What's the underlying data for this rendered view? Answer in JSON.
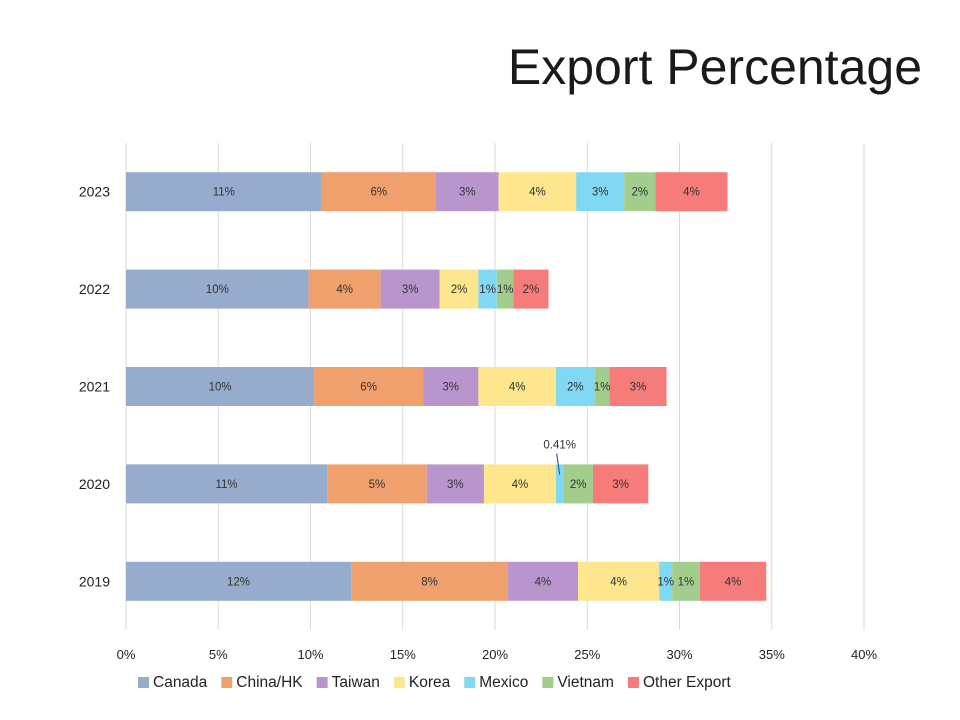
{
  "chart_data": {
    "type": "bar",
    "orientation": "horizontal",
    "stacked": true,
    "title": "Export Percentage",
    "categories": [
      "2023",
      "2022",
      "2021",
      "2020",
      "2019"
    ],
    "xlim": [
      0,
      40
    ],
    "x_ticks": [
      "0%",
      "5%",
      "10%",
      "15%",
      "20%",
      "25%",
      "30%",
      "35%",
      "40%"
    ],
    "grid": "vertical",
    "legend_position": "bottom",
    "series": [
      {
        "name": "Canada",
        "color": "#97abcd",
        "values": [
          10.6,
          9.9,
          10.2,
          10.9,
          12.2
        ],
        "labels": [
          "11%",
          "10%",
          "10%",
          "11%",
          "12%"
        ]
      },
      {
        "name": "China/HK",
        "color": "#f0a06c",
        "values": [
          6.2,
          3.9,
          5.9,
          5.4,
          8.5
        ],
        "labels": [
          "6%",
          "4%",
          "6%",
          "5%",
          "8%"
        ]
      },
      {
        "name": "Taiwan",
        "color": "#b896cd",
        "values": [
          3.4,
          3.2,
          3.0,
          3.1,
          3.8
        ],
        "labels": [
          "3%",
          "3%",
          "3%",
          "3%",
          "4%"
        ]
      },
      {
        "name": "Korea",
        "color": "#fde68e",
        "values": [
          4.2,
          2.1,
          4.2,
          3.9,
          4.4
        ],
        "labels": [
          "4%",
          "2%",
          "4%",
          "4%",
          "4%"
        ]
      },
      {
        "name": "Mexico",
        "color": "#81d8f2",
        "values": [
          2.6,
          1.0,
          2.1,
          0.41,
          0.7
        ],
        "labels": [
          "3%",
          "1%",
          "2%",
          "0.41%",
          "1%"
        ]
      },
      {
        "name": "Vietnam",
        "color": "#a3cd8d",
        "values": [
          1.7,
          0.9,
          0.8,
          1.6,
          1.5
        ],
        "labels": [
          "2%",
          "1%",
          "1%",
          "2%",
          "1%"
        ]
      },
      {
        "name": "Other Export",
        "color": "#f67c7c",
        "values": [
          3.9,
          1.9,
          3.1,
          3.0,
          3.6
        ],
        "labels": [
          "4%",
          "2%",
          "3%",
          "3%",
          "4%"
        ]
      }
    ]
  }
}
